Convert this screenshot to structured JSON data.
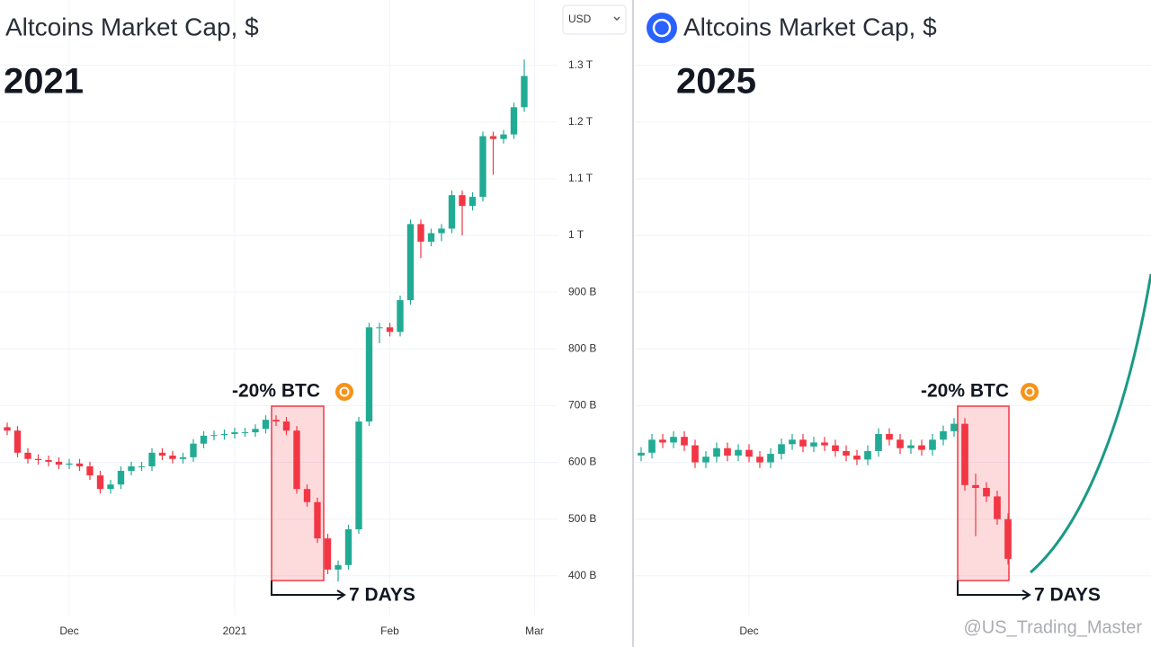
{
  "currency": "USD",
  "watermark": "@US_Trading_Master",
  "chart_data": [
    {
      "type": "candlestick",
      "title": "Altcoins Market Cap, $",
      "label": "2021",
      "annotation": "-20% BTC",
      "duration_label": "7 DAYS",
      "up_color": "#22ab94",
      "down_color": "#f23645",
      "ylim": [
        330,
        1415
      ],
      "yticks": [
        {
          "value": 400,
          "label": "400 B"
        },
        {
          "value": 500,
          "label": "500 B"
        },
        {
          "value": 600,
          "label": "600 B"
        },
        {
          "value": 700,
          "label": "700 B"
        },
        {
          "value": 800,
          "label": "800 B"
        },
        {
          "value": 900,
          "label": "900 B"
        },
        {
          "value": 1000,
          "label": "1 T"
        },
        {
          "value": 1100,
          "label": "1.1 T"
        },
        {
          "value": 1200,
          "label": "1.2 T"
        },
        {
          "value": 1300,
          "label": "1.3 T"
        }
      ],
      "categories": [
        null,
        null,
        null,
        null,
        null,
        null,
        "Dec",
        null,
        null,
        null,
        null,
        null,
        null,
        null,
        null,
        null,
        null,
        null,
        null,
        null,
        null,
        null,
        "2021",
        null,
        null,
        null,
        null,
        null,
        null,
        null,
        null,
        null,
        null,
        null,
        null,
        null,
        null,
        "Feb",
        null,
        null,
        null,
        null,
        null,
        null,
        null,
        null,
        null,
        null,
        null,
        null,
        null,
        "Mar"
      ],
      "open": [
        662,
        656,
        617,
        606,
        604,
        601,
        596,
        598,
        593,
        577,
        553,
        561,
        585,
        593,
        593,
        617,
        612,
        606,
        609,
        633,
        647,
        648,
        650,
        653,
        653,
        659,
        675,
        672,
        656,
        553,
        530,
        466,
        411,
        419,
        482,
        672,
        838,
        838,
        830,
        886,
        1020,
        989,
        1004,
        1012,
        1071,
        1052,
        1068,
        1175,
        1170,
        1178,
        1226,
        null
      ],
      "high": [
        670,
        664,
        625,
        614,
        612,
        609,
        606,
        606,
        601,
        585,
        569,
        593,
        601,
        601,
        625,
        625,
        620,
        617,
        641,
        655,
        656,
        658,
        661,
        661,
        667,
        683,
        683,
        680,
        664,
        561,
        538,
        474,
        427,
        490,
        680,
        846,
        846,
        846,
        894,
        1028,
        1028,
        1012,
        1020,
        1079,
        1079,
        1076,
        1183,
        1183,
        1186,
        1234,
        1310,
        null
      ],
      "low": [
        648,
        609,
        598,
        596,
        593,
        588,
        588,
        585,
        569,
        545,
        545,
        553,
        577,
        585,
        585,
        604,
        598,
        598,
        601,
        625,
        639,
        640,
        642,
        645,
        645,
        651,
        664,
        648,
        545,
        522,
        458,
        403,
        390,
        411,
        474,
        664,
        810,
        822,
        822,
        878,
        960,
        981,
        990,
        1004,
        1000,
        1044,
        1060,
        1107,
        1162,
        1170,
        1218,
        null
      ],
      "close": [
        656,
        617,
        606,
        604,
        601,
        596,
        598,
        593,
        577,
        553,
        561,
        585,
        593,
        593,
        617,
        612,
        606,
        609,
        633,
        647,
        648,
        650,
        653,
        653,
        659,
        675,
        672,
        656,
        553,
        530,
        466,
        411,
        419,
        482,
        672,
        838,
        838,
        830,
        886,
        1020,
        989,
        1004,
        1012,
        1071,
        1052,
        1068,
        1175,
        1170,
        1178,
        1226,
        1281,
        null
      ]
    },
    {
      "type": "candlestick",
      "title": "Altcoins Market Cap, $",
      "label": "2025",
      "annotation": "-20% BTC",
      "duration_label": "7 DAYS",
      "up_color": "#22ab94",
      "down_color": "#f23645",
      "ylim": [
        330,
        1415
      ],
      "categories": [
        null,
        null,
        null,
        null,
        null,
        null,
        null,
        null,
        null,
        null,
        "Dec",
        null,
        null,
        null,
        null,
        null,
        null,
        null,
        null,
        null,
        null,
        null,
        null,
        null,
        null,
        null,
        null,
        null,
        null,
        null,
        null,
        null,
        null,
        null,
        null
      ],
      "open": [
        612,
        617,
        640,
        635,
        645,
        630,
        600,
        610,
        625,
        612,
        622,
        610,
        600,
        615,
        632,
        640,
        628,
        635,
        630,
        620,
        612,
        605,
        620,
        650,
        640,
        625,
        630,
        622,
        640,
        655,
        668,
        560,
        555,
        540,
        500
      ],
      "high": [
        627,
        650,
        650,
        655,
        655,
        640,
        620,
        635,
        635,
        632,
        632,
        620,
        625,
        642,
        650,
        650,
        645,
        645,
        640,
        630,
        622,
        630,
        660,
        660,
        650,
        640,
        640,
        650,
        665,
        678,
        678,
        580,
        565,
        550,
        510
      ],
      "low": [
        602,
        607,
        625,
        625,
        620,
        590,
        590,
        600,
        602,
        602,
        600,
        590,
        590,
        605,
        622,
        618,
        618,
        620,
        610,
        602,
        595,
        595,
        610,
        630,
        615,
        615,
        612,
        612,
        630,
        645,
        550,
        470,
        530,
        490,
        420
      ],
      "close": [
        617,
        640,
        635,
        645,
        630,
        600,
        610,
        625,
        612,
        622,
        610,
        600,
        615,
        632,
        640,
        628,
        635,
        630,
        620,
        612,
        605,
        620,
        650,
        640,
        625,
        630,
        622,
        640,
        655,
        668,
        560,
        555,
        540,
        500,
        430
      ]
    }
  ]
}
